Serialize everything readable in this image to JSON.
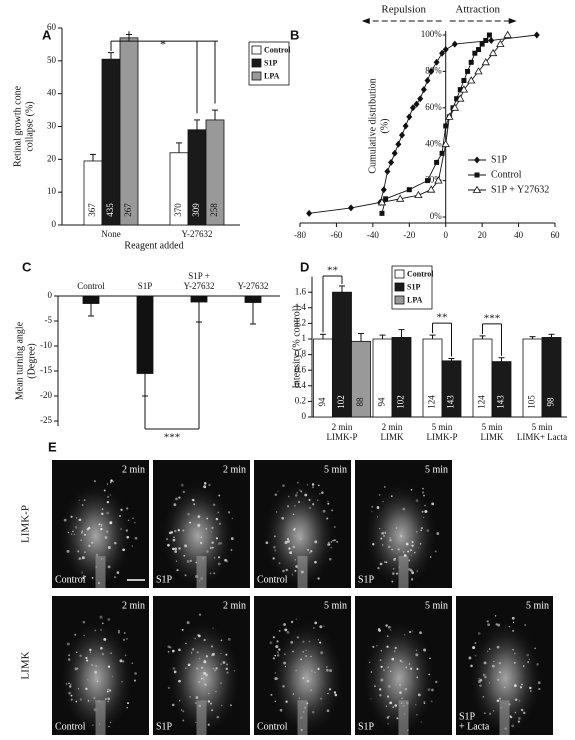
{
  "chart_data": [
    {
      "type": "bar",
      "panel": "A",
      "ylabel": [
        "Retinal growth cone",
        "collapse (%)"
      ],
      "xlabel": "Reagent added",
      "categories": [
        "None",
        "Y-27632"
      ],
      "series": [
        {
          "name": "Control",
          "color": "#ffffff",
          "values": [
            19.5,
            22
          ],
          "errors": [
            2,
            3
          ],
          "n": [
            367,
            370
          ]
        },
        {
          "name": "S1P",
          "color": "#1a1a1a",
          "values": [
            50.5,
            29
          ],
          "errors": [
            2,
            3
          ],
          "n": [
            435,
            309
          ]
        },
        {
          "name": "LPA",
          "color": "#999999",
          "values": [
            57,
            32
          ],
          "errors": [
            1,
            3
          ],
          "n": [
            267,
            258
          ]
        }
      ],
      "ylim": [
        0,
        60
      ],
      "yticks": [
        0,
        10,
        20,
        30,
        40,
        50,
        60
      ],
      "significance": [
        "*"
      ],
      "legend": "upper right"
    },
    {
      "type": "line",
      "panel": "B",
      "ylabel": [
        "Cumulative distribution",
        "(%)"
      ],
      "annotations": [
        "Repulsion",
        "Attraction"
      ],
      "series": [
        {
          "name": "S1P",
          "color": "#111111",
          "marker": "diamond",
          "x": [
            -75,
            -52,
            -36,
            -34,
            -32,
            -30,
            -28,
            -26,
            -24,
            -22,
            -20,
            -18,
            -16,
            -14,
            -12,
            -10,
            -8,
            -5,
            -2,
            0,
            5,
            25,
            50
          ],
          "values": [
            2,
            5,
            8,
            15,
            25,
            30,
            35,
            40,
            45,
            50,
            55,
            60,
            62,
            65,
            70,
            75,
            80,
            85,
            90,
            92,
            95,
            97,
            100
          ]
        },
        {
          "name": "Control",
          "color": "#111111",
          "marker": "square",
          "x": [
            -35,
            -33,
            -20,
            -10,
            -5,
            -2,
            0,
            2,
            4,
            6,
            8,
            10,
            12,
            14,
            16,
            18,
            20,
            22,
            24
          ],
          "values": [
            2,
            10,
            15,
            20,
            30,
            35,
            50,
            55,
            60,
            65,
            70,
            75,
            80,
            85,
            90,
            92,
            95,
            97,
            100
          ]
        },
        {
          "name": "S1P + Y27632",
          "color": "#111111",
          "marker": "triangle",
          "x": [
            -35,
            -25,
            -15,
            -8,
            -4,
            0,
            2,
            5,
            8,
            10,
            14,
            18,
            22,
            26,
            30,
            34
          ],
          "values": [
            8,
            10,
            12,
            15,
            20,
            40,
            55,
            60,
            65,
            70,
            75,
            80,
            85,
            90,
            95,
            100
          ]
        }
      ],
      "xlim": [
        -80,
        60
      ],
      "xticks": [
        -80,
        -60,
        -40,
        -20,
        0,
        20,
        40,
        60
      ],
      "ylim": [
        0,
        100
      ],
      "yticks": [
        {
          "value": 0,
          "label": "0%"
        },
        {
          "value": 20,
          "label": "20%"
        },
        {
          "value": 40,
          "label": "40%"
        },
        {
          "value": 60,
          "label": "60%"
        },
        {
          "value": 80,
          "label": "80%"
        },
        {
          "value": 100,
          "label": "100%"
        }
      ],
      "legend": "lower right"
    },
    {
      "type": "bar",
      "panel": "C",
      "ylabel": [
        "Mean turning angle",
        "(Degree)"
      ],
      "categories": [
        "Control",
        "S1P",
        [
          "S1P +",
          "Y-27632"
        ],
        "Y-27632"
      ],
      "values": [
        -1.5,
        -15.5,
        -1.2,
        -1.3
      ],
      "errors": [
        2.5,
        4.5,
        4,
        4.3
      ],
      "color": "#111111",
      "ylim": [
        -26,
        0
      ],
      "yticks": [
        0,
        -5,
        -10,
        -15,
        -20,
        -25
      ],
      "significance": [
        "***"
      ]
    },
    {
      "type": "bar",
      "panel": "D",
      "ylabel": [
        "Intensity (% control)"
      ],
      "categories": [
        [
          "2 min",
          "LIMK-P"
        ],
        [
          "2 min",
          "LIMK"
        ],
        [
          "5 min",
          "LIMK-P"
        ],
        [
          "5 min",
          "LIMK"
        ],
        [
          "5 min",
          "LIMK+ Lacta"
        ]
      ],
      "series": [
        {
          "name": "Control",
          "color": "#ffffff",
          "values": [
            1,
            1,
            1,
            1,
            1
          ],
          "errors": [
            0.06,
            0.05,
            0.05,
            0.04,
            0.03
          ],
          "n": [
            94,
            94,
            124,
            124,
            105
          ]
        },
        {
          "name": "S1P",
          "color": "#1a1a1a",
          "values": [
            1.6,
            1.02,
            0.72,
            0.71,
            1.02
          ],
          "errors": [
            0.08,
            0.1,
            0.03,
            0.05,
            0.04
          ],
          "n": [
            102,
            102,
            143,
            143,
            98
          ]
        },
        {
          "name": "LPA",
          "color": "#999999",
          "values": [
            0.97,
            null,
            null,
            null,
            null
          ],
          "errors": [
            0.1,
            null,
            null,
            null,
            null
          ],
          "n": [
            88,
            null,
            null,
            null,
            null
          ]
        }
      ],
      "ylim": [
        0,
        1.8
      ],
      "yticks": [
        0,
        0.2,
        0.4,
        0.6,
        0.8,
        1,
        1.2,
        1.4,
        1.6
      ],
      "significance": [
        "**",
        "**",
        "***"
      ],
      "legend": "upper center"
    }
  ],
  "panel_e": {
    "letter": "E",
    "rows": [
      {
        "label": "LIMK-P",
        "tiles": [
          {
            "time": "2 min",
            "condition": "Control"
          },
          {
            "time": "2 min",
            "condition": "S1P"
          },
          {
            "time": "5 min",
            "condition": "Control"
          },
          {
            "time": "5 min",
            "condition": "S1P"
          }
        ]
      },
      {
        "label": "LIMK",
        "tiles": [
          {
            "time": "2 min",
            "condition": "Control"
          },
          {
            "time": "2 min",
            "condition": "S1P"
          },
          {
            "time": "5 min",
            "condition": "Control"
          },
          {
            "time": "5 min",
            "condition": "S1P"
          },
          {
            "time": "5 min",
            "condition": [
              "S1P",
              "+ Lacta"
            ]
          }
        ]
      }
    ]
  }
}
